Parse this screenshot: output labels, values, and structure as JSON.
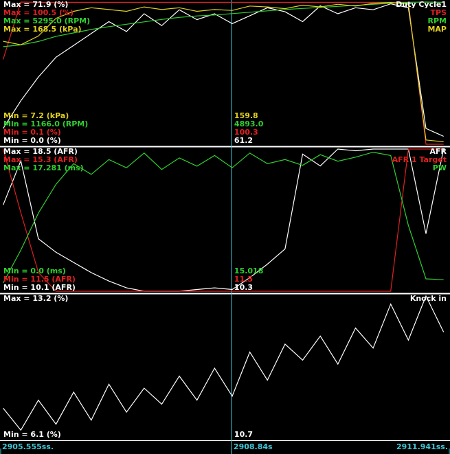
{
  "chart_data": [
    {
      "type": "line",
      "x": [
        2905.6,
        2905.85,
        2906.1,
        2906.35,
        2906.6,
        2906.85,
        2907.1,
        2907.35,
        2907.6,
        2907.85,
        2908.1,
        2908.35,
        2908.6,
        2908.85,
        2909.1,
        2909.35,
        2909.6,
        2909.85,
        2910.1,
        2910.35,
        2910.6,
        2910.85,
        2911.1,
        2911.35,
        2911.6,
        2911.85
      ],
      "series": [
        {
          "name": "Duty Cycle1",
          "color": "#ffffff",
          "ylim": [
            0.0,
            71.9
          ],
          "max_label": "Max = 71.9 (%)",
          "min_label": "Min = 0.0 (%)",
          "cursor_label": "61.2",
          "values": [
            8,
            22,
            34,
            44,
            50,
            56,
            62,
            57,
            66,
            60,
            68,
            63,
            66,
            61,
            65,
            69,
            67,
            62,
            70,
            66,
            69,
            68,
            71,
            69,
            8,
            4
          ]
        },
        {
          "name": "TPS",
          "color": "#e02020",
          "ylim": [
            0.1,
            100.5
          ],
          "max_label": "Max = 100.5 (%)",
          "min_label": "Min = 0.1 (%)",
          "cursor_label": "100.3",
          "values": [
            60,
            100.5,
            100.3,
            100.3,
            100.3,
            100.3,
            100.3,
            100.3,
            100.3,
            100.3,
            100.3,
            100.3,
            100.3,
            100.3,
            100.3,
            100.3,
            100.3,
            100.3,
            100.3,
            100.3,
            100.3,
            100.3,
            100.3,
            100.3,
            0.1,
            0.1
          ]
        },
        {
          "name": "RPM",
          "color": "#30d030",
          "ylim": [
            1166.0,
            5295.0
          ],
          "max_label": "Max = 5295.0 (RPM)",
          "min_label": "Min = 1166.0 (RPM)",
          "cursor_label": "4893.0",
          "values": [
            4000,
            4050,
            4150,
            4300,
            4400,
            4500,
            4580,
            4650,
            4720,
            4790,
            4850,
            4893,
            4920,
            4960,
            5000,
            5040,
            5080,
            5110,
            5140,
            5170,
            5200,
            5230,
            5260,
            5290,
            5295,
            5290
          ]
        },
        {
          "name": "MAP",
          "color": "#e0d020",
          "ylim": [
            7.2,
            168.5
          ],
          "max_label": "Max = 168.5 (kPa)",
          "min_label": "Min = 7.2 (kPa)",
          "cursor_label": "159.8",
          "values": [
            124,
            120,
            130,
            150,
            158,
            162,
            160,
            158,
            163,
            160,
            162,
            158,
            160,
            159,
            164,
            163,
            161,
            165,
            163,
            166,
            164,
            167,
            168,
            166,
            12,
            10
          ]
        }
      ]
    },
    {
      "type": "line",
      "x": [
        2905.6,
        2905.85,
        2906.1,
        2906.35,
        2906.6,
        2906.85,
        2907.1,
        2907.35,
        2907.6,
        2907.85,
        2908.1,
        2908.35,
        2908.6,
        2908.85,
        2909.1,
        2909.35,
        2909.6,
        2909.85,
        2910.1,
        2910.35,
        2910.6,
        2910.85,
        2911.1,
        2911.35,
        2911.6,
        2911.85
      ],
      "series": [
        {
          "name": "AFR",
          "color": "#ffffff",
          "ylim": [
            10.1,
            18.5
          ],
          "max_label": "Max = 18.5 (AFR)",
          "min_label": "Min = 10.1 (AFR)",
          "cursor_label": "10.3",
          "values": [
            15.2,
            17.8,
            13.2,
            12.4,
            11.8,
            11.2,
            10.7,
            10.3,
            10.1,
            10.1,
            10.1,
            10.2,
            10.3,
            10.2,
            10.9,
            11.7,
            12.6,
            18.2,
            17.5,
            18.5,
            18.4,
            18.5,
            18.5,
            18.5,
            13.5,
            18.5
          ]
        },
        {
          "name": "AFR 1 Target",
          "color": "#e02020",
          "ylim": [
            11.5,
            15.3
          ],
          "max_label": "Max = 15.3 (AFR)",
          "min_label": "Min = 11.5 (AFR)",
          "cursor_label": "11.5",
          "values": [
            15.3,
            13.6,
            12.0,
            11.5,
            11.5,
            11.5,
            11.5,
            11.5,
            11.5,
            11.5,
            11.5,
            11.5,
            11.5,
            11.5,
            11.5,
            11.5,
            11.5,
            11.5,
            11.5,
            11.5,
            11.5,
            11.5,
            11.5,
            15.3,
            15.3,
            15.3
          ]
        },
        {
          "name": "PW",
          "color": "#30d030",
          "ylim": [
            0.0,
            17.281
          ],
          "max_label": "Max = 17.281 (ms)",
          "min_label": "Min = 0.0 (ms)",
          "cursor_label": "15.018",
          "values": [
            1.0,
            5.0,
            9.5,
            13.0,
            15.5,
            14.2,
            16.0,
            15.0,
            16.8,
            14.8,
            16.2,
            15.2,
            16.5,
            15.0,
            16.8,
            15.5,
            16.0,
            15.3,
            16.6,
            15.8,
            16.3,
            16.9,
            16.5,
            8.0,
            1.5,
            1.4
          ]
        }
      ]
    },
    {
      "type": "line",
      "x": [
        2905.6,
        2905.85,
        2906.1,
        2906.35,
        2906.6,
        2906.85,
        2907.1,
        2907.35,
        2907.6,
        2907.85,
        2908.1,
        2908.35,
        2908.6,
        2908.85,
        2909.1,
        2909.35,
        2909.6,
        2909.85,
        2910.1,
        2910.35,
        2910.6,
        2910.85,
        2911.1,
        2911.35,
        2911.6,
        2911.85
      ],
      "series": [
        {
          "name": "Knock in",
          "color": "#ffffff",
          "ylim": [
            6.1,
            13.2
          ],
          "max_label": "Max = 13.2 (%)",
          "min_label": "Min = 6.1 (%)",
          "cursor_label": "10.7",
          "values": [
            7.6,
            6.5,
            8.0,
            6.8,
            8.4,
            7.0,
            8.8,
            7.4,
            8.6,
            7.8,
            9.2,
            8.0,
            9.6,
            8.2,
            10.4,
            9.0,
            10.8,
            10.0,
            11.2,
            9.8,
            11.6,
            10.6,
            12.8,
            11.0,
            13.2,
            11.4
          ]
        }
      ]
    }
  ],
  "x_axis": {
    "xlim": [
      2905.555,
      2911.941
    ],
    "xticks": [
      {
        "value": 2905.555,
        "label": "2905.555ss."
      },
      {
        "value": 2908.84,
        "label": "2908.84s"
      },
      {
        "value": 2911.941,
        "label": "2911.941ss."
      }
    ],
    "color": "#40c8d8"
  }
}
